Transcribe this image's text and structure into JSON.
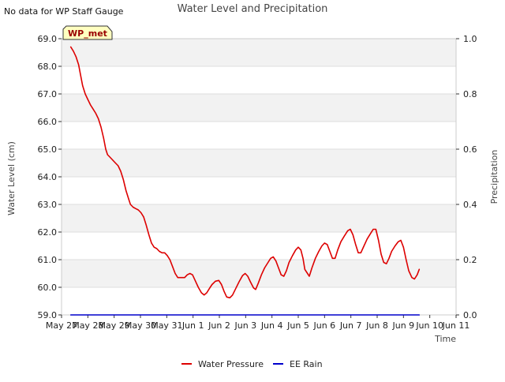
{
  "chart_data": {
    "type": "line",
    "title": "Water Level and Precipitation",
    "corner_note": "No data for WP Staff Gauge",
    "badge": "WP_met",
    "xlabel": "Time",
    "ylabel": "Water Level (cm)",
    "y2label": "Precipitation",
    "xlim": [
      0,
      15
    ],
    "ylim": [
      59.0,
      69.0
    ],
    "y2lim": [
      0.0,
      1.0
    ],
    "x_ticks": [
      {
        "x": 0,
        "label": "May 27"
      },
      {
        "x": 1,
        "label": "May 28"
      },
      {
        "x": 2,
        "label": "May 29"
      },
      {
        "x": 3,
        "label": "May 30"
      },
      {
        "x": 4,
        "label": "May 31"
      },
      {
        "x": 5,
        "label": "Jun 1"
      },
      {
        "x": 6,
        "label": "Jun 2"
      },
      {
        "x": 7,
        "label": "Jun 3"
      },
      {
        "x": 8,
        "label": "Jun 4"
      },
      {
        "x": 9,
        "label": "Jun 5"
      },
      {
        "x": 10,
        "label": "Jun 6"
      },
      {
        "x": 11,
        "label": "Jun 7"
      },
      {
        "x": 12,
        "label": "Jun 8"
      },
      {
        "x": 13,
        "label": "Jun 9"
      },
      {
        "x": 14,
        "label": "Jun 10"
      },
      {
        "x": 15,
        "label": "Jun 11"
      }
    ],
    "y_ticks": [
      "59.0",
      "60.0",
      "61.0",
      "62.0",
      "63.0",
      "64.0",
      "65.0",
      "66.0",
      "67.0",
      "68.0",
      "69.0"
    ],
    "y2_ticks": [
      "0.0",
      "0.2",
      "0.4",
      "0.6",
      "0.8",
      "1.0"
    ],
    "grid": true,
    "legend_position": "bottom-center",
    "series": [
      {
        "name": "Water Pressure",
        "axis": "left",
        "color": "#dd0000",
        "points": [
          [
            0.35,
            68.7
          ],
          [
            0.45,
            68.55
          ],
          [
            0.55,
            68.35
          ],
          [
            0.65,
            68.05
          ],
          [
            0.72,
            67.7
          ],
          [
            0.8,
            67.3
          ],
          [
            0.9,
            67.0
          ],
          [
            1.0,
            66.8
          ],
          [
            1.1,
            66.6
          ],
          [
            1.2,
            66.45
          ],
          [
            1.3,
            66.3
          ],
          [
            1.4,
            66.1
          ],
          [
            1.5,
            65.8
          ],
          [
            1.6,
            65.4
          ],
          [
            1.68,
            65.0
          ],
          [
            1.75,
            64.8
          ],
          [
            1.85,
            64.7
          ],
          [
            1.95,
            64.6
          ],
          [
            2.05,
            64.5
          ],
          [
            2.15,
            64.4
          ],
          [
            2.25,
            64.2
          ],
          [
            2.35,
            63.9
          ],
          [
            2.45,
            63.5
          ],
          [
            2.55,
            63.2
          ],
          [
            2.62,
            63.0
          ],
          [
            2.72,
            62.9
          ],
          [
            2.82,
            62.85
          ],
          [
            2.92,
            62.8
          ],
          [
            3.02,
            62.7
          ],
          [
            3.12,
            62.55
          ],
          [
            3.22,
            62.25
          ],
          [
            3.32,
            61.9
          ],
          [
            3.42,
            61.6
          ],
          [
            3.52,
            61.45
          ],
          [
            3.62,
            61.4
          ],
          [
            3.72,
            61.3
          ],
          [
            3.82,
            61.25
          ],
          [
            3.92,
            61.25
          ],
          [
            4.02,
            61.15
          ],
          [
            4.12,
            61.0
          ],
          [
            4.22,
            60.75
          ],
          [
            4.32,
            60.5
          ],
          [
            4.42,
            60.35
          ],
          [
            4.55,
            60.35
          ],
          [
            4.68,
            60.35
          ],
          [
            4.78,
            60.45
          ],
          [
            4.88,
            60.5
          ],
          [
            4.98,
            60.45
          ],
          [
            5.08,
            60.25
          ],
          [
            5.2,
            60.0
          ],
          [
            5.32,
            59.8
          ],
          [
            5.42,
            59.72
          ],
          [
            5.52,
            59.8
          ],
          [
            5.62,
            59.95
          ],
          [
            5.72,
            60.1
          ],
          [
            5.85,
            60.22
          ],
          [
            5.98,
            60.25
          ],
          [
            6.08,
            60.1
          ],
          [
            6.18,
            59.85
          ],
          [
            6.28,
            59.65
          ],
          [
            6.4,
            59.62
          ],
          [
            6.5,
            59.72
          ],
          [
            6.62,
            59.95
          ],
          [
            6.75,
            60.2
          ],
          [
            6.88,
            60.42
          ],
          [
            6.98,
            60.5
          ],
          [
            7.08,
            60.4
          ],
          [
            7.18,
            60.2
          ],
          [
            7.3,
            59.98
          ],
          [
            7.38,
            59.92
          ],
          [
            7.48,
            60.15
          ],
          [
            7.6,
            60.45
          ],
          [
            7.72,
            60.7
          ],
          [
            7.85,
            60.9
          ],
          [
            7.95,
            61.05
          ],
          [
            8.05,
            61.1
          ],
          [
            8.15,
            60.95
          ],
          [
            8.25,
            60.7
          ],
          [
            8.35,
            60.45
          ],
          [
            8.45,
            60.4
          ],
          [
            8.55,
            60.6
          ],
          [
            8.65,
            60.9
          ],
          [
            8.78,
            61.15
          ],
          [
            8.9,
            61.35
          ],
          [
            9.0,
            61.45
          ],
          [
            9.1,
            61.35
          ],
          [
            9.18,
            61.05
          ],
          [
            9.25,
            60.65
          ],
          [
            9.35,
            60.5
          ],
          [
            9.42,
            60.4
          ],
          [
            9.52,
            60.7
          ],
          [
            9.65,
            61.05
          ],
          [
            9.78,
            61.3
          ],
          [
            9.9,
            61.5
          ],
          [
            10.0,
            61.6
          ],
          [
            10.1,
            61.55
          ],
          [
            10.2,
            61.3
          ],
          [
            10.3,
            61.05
          ],
          [
            10.4,
            61.05
          ],
          [
            10.5,
            61.35
          ],
          [
            10.62,
            61.65
          ],
          [
            10.75,
            61.85
          ],
          [
            10.88,
            62.05
          ],
          [
            10.98,
            62.1
          ],
          [
            11.08,
            61.9
          ],
          [
            11.18,
            61.55
          ],
          [
            11.28,
            61.25
          ],
          [
            11.38,
            61.25
          ],
          [
            11.5,
            61.5
          ],
          [
            11.62,
            61.75
          ],
          [
            11.75,
            61.95
          ],
          [
            11.85,
            62.1
          ],
          [
            11.95,
            62.1
          ],
          [
            12.05,
            61.7
          ],
          [
            12.15,
            61.2
          ],
          [
            12.25,
            60.9
          ],
          [
            12.35,
            60.85
          ],
          [
            12.45,
            61.05
          ],
          [
            12.55,
            61.3
          ],
          [
            12.68,
            61.5
          ],
          [
            12.8,
            61.65
          ],
          [
            12.9,
            61.7
          ],
          [
            13.0,
            61.45
          ],
          [
            13.1,
            61.0
          ],
          [
            13.2,
            60.6
          ],
          [
            13.32,
            60.35
          ],
          [
            13.42,
            60.3
          ],
          [
            13.52,
            60.45
          ],
          [
            13.6,
            60.65
          ]
        ]
      },
      {
        "name": "EE Rain",
        "axis": "right",
        "color": "#0000cc",
        "points": [
          [
            0.35,
            0.0
          ],
          [
            13.6,
            0.0
          ]
        ]
      }
    ]
  }
}
